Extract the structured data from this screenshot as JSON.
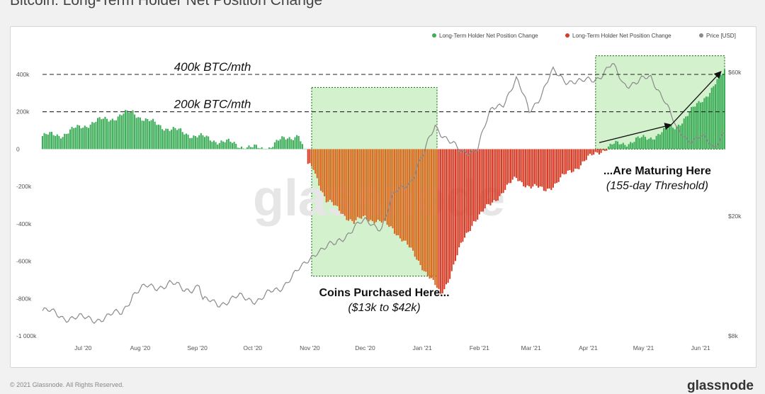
{
  "page": {
    "title": "Bitcoin: Long-Term Holder Net Position Change",
    "footer_left": "© 2021 Glassnode. All Rights Reserved.",
    "footer_right": "glassnode",
    "watermark": "glassnode"
  },
  "colors": {
    "positive": "#3fae5a",
    "negative": "#d63b25",
    "orange": "#d86a1e",
    "price": "#8a8a8a",
    "box_fill": "#a8e39a",
    "box_border": "#2c7a2c"
  },
  "chart_data": {
    "type": "bar",
    "title": "Bitcoin: Long-Term Holder Net Position Change",
    "legend": [
      {
        "label": "Long-Term Holder Net Position Change",
        "color": "#3fae5a"
      },
      {
        "label": "Long-Term Holder Net Position Change",
        "color": "#d63b25"
      },
      {
        "label": "Price [USD]",
        "color": "#8a8a8a"
      }
    ],
    "legend_position": "top-right",
    "grid": false,
    "x_ticks": [
      "Jul '20",
      "Aug '20",
      "Sep '20",
      "Oct '20",
      "Nov '20",
      "Dec '20",
      "Jan '21",
      "Feb '21",
      "Mar '21",
      "Apr '21",
      "May '21",
      "Jun '21"
    ],
    "y_left_ticks": [
      "400k",
      "200k",
      "0",
      "-200k",
      "-400k",
      "-600k",
      "-800k",
      "-1 000k"
    ],
    "y_left_range": [
      -1000000,
      400000
    ],
    "y_right_ticks": [
      "$60k",
      "$20k",
      "$8k"
    ],
    "y_right_scale": "log",
    "y_right_range": [
      8000,
      60000
    ],
    "net_position_keypoints": {
      "comment": "BTC per month, read at dates (yyyy-mm-dd)",
      "x": [
        "2020-06-09",
        "2020-06-20",
        "2020-07-05",
        "2020-07-20",
        "2020-07-28",
        "2020-08-05",
        "2020-08-20",
        "2020-09-05",
        "2020-09-20",
        "2020-10-01",
        "2020-10-08",
        "2020-10-15",
        "2020-10-20",
        "2020-10-26",
        "2020-10-31",
        "2020-11-03",
        "2020-11-10",
        "2020-11-18",
        "2020-11-25",
        "2020-12-01",
        "2020-12-08",
        "2020-12-16",
        "2020-12-24",
        "2020-12-31",
        "2021-01-07",
        "2021-01-11",
        "2021-01-15",
        "2021-01-22",
        "2021-01-29",
        "2021-02-07",
        "2021-02-14",
        "2021-02-21",
        "2021-03-01",
        "2021-03-08",
        "2021-03-15",
        "2021-03-22",
        "2021-03-31",
        "2021-04-07",
        "2021-04-14",
        "2021-04-20",
        "2021-04-27",
        "2021-05-04",
        "2021-05-11",
        "2021-05-18",
        "2021-05-25",
        "2021-06-01",
        "2021-06-08",
        "2021-06-14"
      ],
      "y": [
        70000,
        80000,
        140000,
        175000,
        200000,
        150000,
        100000,
        60000,
        30000,
        5000,
        3000,
        40000,
        60000,
        80000,
        -90000,
        -100000,
        -280000,
        -330000,
        -400000,
        -360000,
        -390000,
        -420000,
        -520000,
        -610000,
        -720000,
        -780000,
        -700000,
        -520000,
        -380000,
        -300000,
        -220000,
        -160000,
        -200000,
        -220000,
        -180000,
        -120000,
        -60000,
        -10000,
        20000,
        30000,
        50000,
        60000,
        90000,
        120000,
        180000,
        260000,
        330000,
        420000
      ]
    },
    "price_keypoints": {
      "comment": "USD, read at dates (yyyy-mm-dd)",
      "x": [
        "2020-06-09",
        "2020-06-20",
        "2020-07-01",
        "2020-07-14",
        "2020-07-22",
        "2020-07-28",
        "2020-08-05",
        "2020-08-17",
        "2020-08-25",
        "2020-09-02",
        "2020-09-04",
        "2020-09-12",
        "2020-09-24",
        "2020-10-05",
        "2020-10-15",
        "2020-10-21",
        "2020-10-28",
        "2020-11-05",
        "2020-11-15",
        "2020-11-25",
        "2020-12-01",
        "2020-12-10",
        "2020-12-17",
        "2020-12-26",
        "2021-01-02",
        "2021-01-08",
        "2021-01-15",
        "2021-01-22",
        "2021-01-31",
        "2021-02-08",
        "2021-02-14",
        "2021-02-21",
        "2021-02-28",
        "2021-03-07",
        "2021-03-13",
        "2021-03-20",
        "2021-03-28",
        "2021-04-06",
        "2021-04-14",
        "2021-04-20",
        "2021-04-28",
        "2021-05-05",
        "2021-05-12",
        "2021-05-19",
        "2021-05-25",
        "2021-06-01",
        "2021-06-08",
        "2021-06-14"
      ],
      "y": [
        9700,
        9300,
        9100,
        9200,
        9600,
        11000,
        11600,
        11900,
        11400,
        11800,
        10400,
        10300,
        10700,
        10600,
        11400,
        12500,
        13400,
        15500,
        16000,
        18500,
        19000,
        18500,
        23500,
        26500,
        32000,
        40000,
        36000,
        32000,
        34000,
        45000,
        48000,
        56000,
        45000,
        51000,
        60000,
        57000,
        55000,
        58000,
        63000,
        55000,
        56000,
        57000,
        50000,
        38000,
        36000,
        37000,
        33000,
        39000
      ]
    },
    "annotations": [
      {
        "text": "400k BTC/mth",
        "y": 400000
      },
      {
        "text": "200k BTC/mth",
        "y": 200000
      },
      {
        "text": "Coins Purchased Here...",
        "subtext": "($13k to $42k)",
        "x_range": [
          "2020-11-02",
          "2021-01-09"
        ]
      },
      {
        "text": "...Are Maturing Here",
        "subtext": "(155-day Threshold)",
        "x_range": [
          "2021-04-05",
          "2021-06-14"
        ]
      }
    ]
  }
}
